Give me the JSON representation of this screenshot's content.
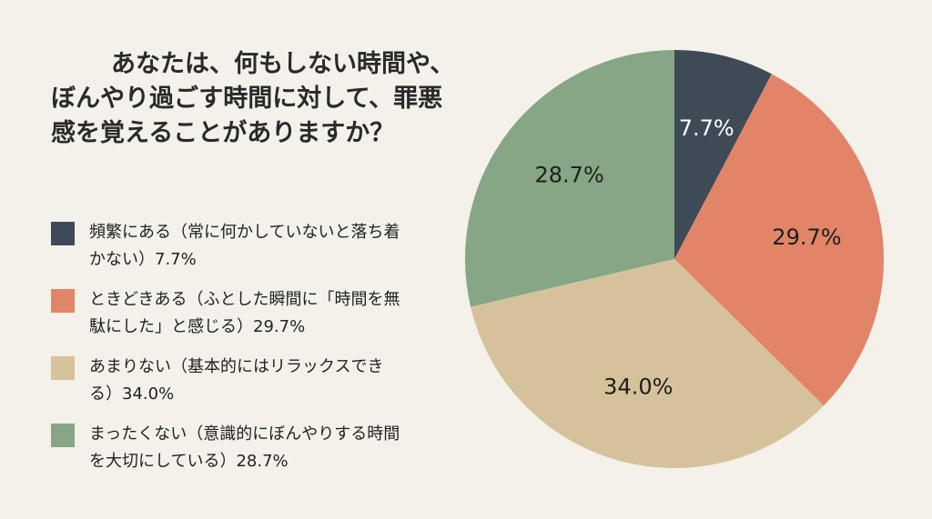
{
  "chart_data": {
    "type": "pie",
    "title": "あなたは、何もしない時間や、ぼんやり過ごす時間に対して、罪悪感を覚えることがありますか？",
    "slices": [
      {
        "label": "頻繁にある（常に何かしていないと落ち着かない）7.7%",
        "value": 7.7,
        "value_label": "7.7%",
        "color": "#3e4a56",
        "label_color": "#ffffff"
      },
      {
        "label": "ときどきある（ふとした瞬間に「時間を無駄にした」と感じる）29.7%",
        "value": 29.7,
        "value_label": "29.7%",
        "color": "#e28468",
        "label_color": "#1e1e1e"
      },
      {
        "label": "あまりない（基本的にはリラックスできる）34.0%",
        "value": 34.0,
        "value_label": "34.0%",
        "color": "#d6c29a",
        "label_color": "#1e1e1e"
      },
      {
        "label": "まったくない（意識的にぼんやりする時間を大切にしている）28.7%",
        "value": 28.7,
        "value_label": "28.7%",
        "color": "#86a686",
        "label_color": "#1e1e1e"
      }
    ],
    "start": "12 o'clock",
    "direction": "clockwise",
    "legend_position": "left"
  }
}
